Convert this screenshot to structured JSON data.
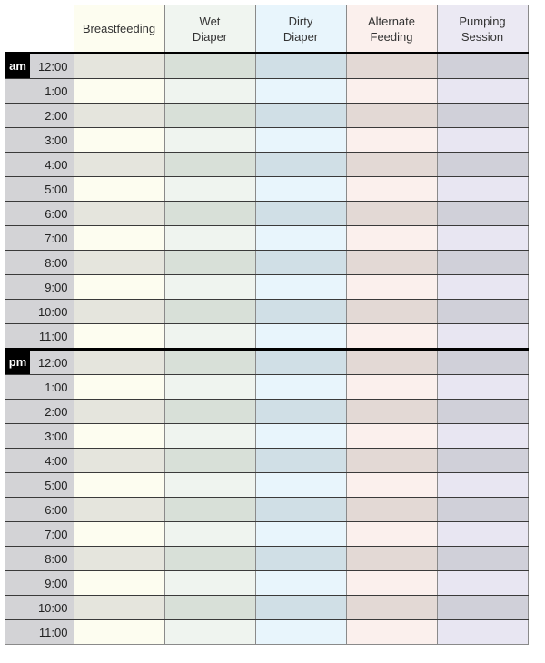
{
  "columns": [
    {
      "label": "Breastfeeding",
      "header_bg": "#fdfdf0",
      "shade": "#e5e5dd",
      "light": "#fdfdf0"
    },
    {
      "label": "Wet\nDiaper",
      "header_bg": "#f0f5f0",
      "shade": "#d8e0d8",
      "light": "#eff4ef"
    },
    {
      "label": "Dirty\nDiaper",
      "header_bg": "#e8f5fc",
      "shade": "#d0dfe6",
      "light": "#e8f5fc"
    },
    {
      "label": "Alternate\nFeeding",
      "header_bg": "#fbf0ed",
      "shade": "#e3d9d5",
      "light": "#fbf0ed"
    },
    {
      "label": "Pumping\nSession",
      "header_bg": "#ebe9f3",
      "shade": "#d0d0d9",
      "light": "#e8e6f2"
    }
  ],
  "blocks": [
    {
      "period": "am",
      "times": [
        "12:00",
        "1:00",
        "2:00",
        "3:00",
        "4:00",
        "5:00",
        "6:00",
        "7:00",
        "8:00",
        "9:00",
        "10:00",
        "11:00"
      ]
    },
    {
      "period": "pm",
      "times": [
        "12:00",
        "1:00",
        "2:00",
        "3:00",
        "4:00",
        "5:00",
        "6:00",
        "7:00",
        "8:00",
        "9:00",
        "10:00",
        "11:00"
      ]
    }
  ]
}
